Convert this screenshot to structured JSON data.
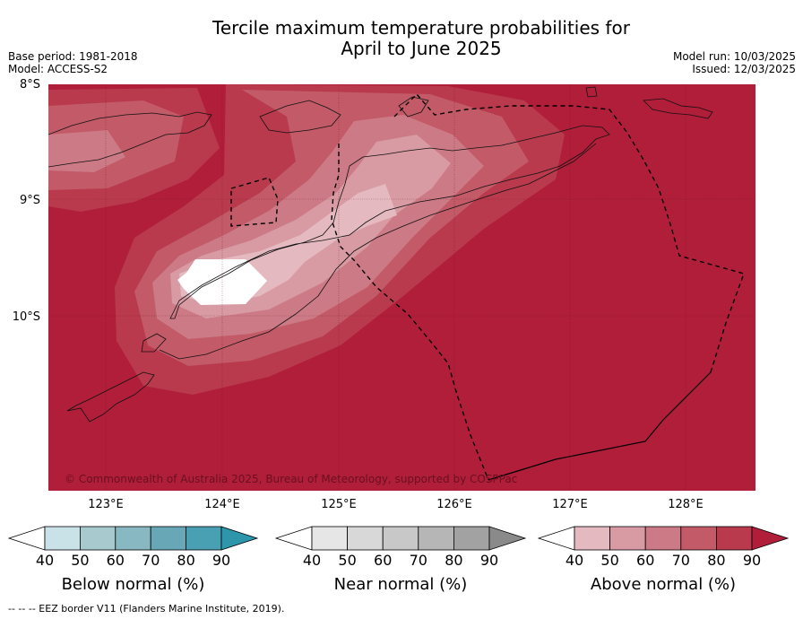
{
  "header": {
    "title_line1": "Tercile maximum temperature probabilities for",
    "title_line2": "April to June 2025",
    "base_period": "Base period: 1981-2018",
    "model": "Model: ACCESS-S2",
    "model_run": "Model run: 10/03/2025",
    "issued": "Issued: 12/03/2025"
  },
  "map": {
    "lat_labels": [
      "8°S",
      "9°S",
      "10°S"
    ],
    "lon_labels": [
      "123°E",
      "124°E",
      "125°E",
      "126°E",
      "127°E",
      "128°E"
    ],
    "copyright": "© Commonwealth of Australia 2025, Bureau of Meteorology, supported by COSPPac",
    "background_color": "#b01e3a"
  },
  "colorbars": [
    {
      "title": "Below normal (%)",
      "ticks": [
        "40",
        "50",
        "60",
        "70",
        "80",
        "90"
      ],
      "colors": [
        "#c8e2e8",
        "#a8c9ce",
        "#88b8c2",
        "#68a8b6",
        "#48a0b2",
        "#2d96aa"
      ]
    },
    {
      "title": "Near normal (%)",
      "ticks": [
        "40",
        "50",
        "60",
        "70",
        "80",
        "90"
      ],
      "colors": [
        "#e6e6e6",
        "#d8d8d8",
        "#c8c8c8",
        "#b6b6b6",
        "#a2a2a2",
        "#8a8a8a"
      ]
    },
    {
      "title": "Above normal (%)",
      "ticks": [
        "40",
        "50",
        "60",
        "70",
        "80",
        "90"
      ],
      "colors": [
        "#e4b9c0",
        "#d89aa3",
        "#cc7a85",
        "#c25a68",
        "#b83a4c",
        "#b01e3a"
      ]
    }
  ],
  "footnote": "--  --  -- EEZ border V11 (Flanders Marine Institute, 2019)."
}
